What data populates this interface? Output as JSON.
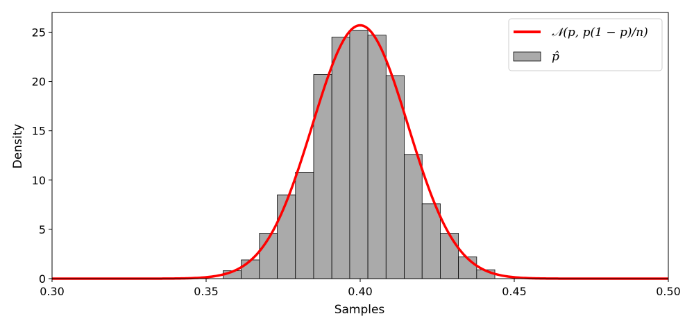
{
  "chart_data": {
    "type": "bar",
    "subtype": "histogram",
    "title": "",
    "xlabel": "Samples",
    "ylabel": "Density",
    "xlim": [
      0.3,
      0.5
    ],
    "ylim": [
      0,
      27
    ],
    "x_ticks": [
      0.3,
      0.35,
      0.4,
      0.45,
      0.5
    ],
    "x_tick_labels": [
      "0.30",
      "0.35",
      "0.40",
      "0.45",
      "0.50"
    ],
    "y_ticks": [
      0,
      5,
      10,
      15,
      20,
      25
    ],
    "y_tick_labels": [
      "0",
      "5",
      "10",
      "15",
      "20",
      "25"
    ],
    "grid": false,
    "legend_position": "top-right",
    "histogram": {
      "name": "p̂",
      "color": "#aaaaaa",
      "edge_color": "#000000",
      "bin_edges": [
        0.3555,
        0.3614,
        0.3673,
        0.3731,
        0.379,
        0.3849,
        0.3908,
        0.3966,
        0.4025,
        0.4084,
        0.4143,
        0.4201,
        0.426,
        0.4319,
        0.4378,
        0.4437
      ],
      "values": [
        0.8,
        1.9,
        4.6,
        8.5,
        10.8,
        20.7,
        24.5,
        25.2,
        24.7,
        20.6,
        12.6,
        7.6,
        4.6,
        2.2,
        0.9
      ]
    },
    "curve": {
      "name": "𝒩(p, p(1 − p)/n)",
      "color": "#ff0000",
      "type": "line",
      "distribution": "normal",
      "mean": 0.4,
      "std": 0.0155,
      "peak_density": 25.7
    }
  }
}
